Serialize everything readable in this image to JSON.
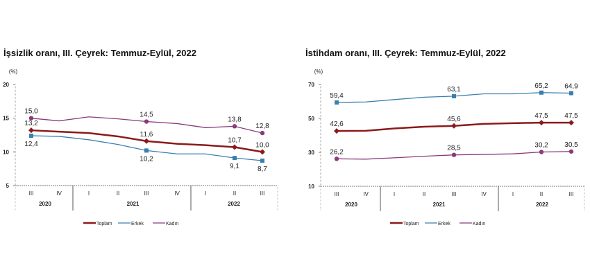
{
  "chart_data": [
    {
      "type": "line",
      "title": "İşsizlik oranı, III. Çeyrek: Temmuz-Eylül, 2022",
      "ylabel": "(%)",
      "ylim": [
        5,
        20
      ],
      "yticks": [
        5,
        10,
        15,
        20
      ],
      "grid": false,
      "legend": "bottom",
      "categories": [
        "III",
        "IV",
        "I",
        "II",
        "III",
        "IV",
        "I",
        "II",
        "III"
      ],
      "year_groups": [
        {
          "label": "2020",
          "span": 2
        },
        {
          "label": "2021",
          "span": 4
        },
        {
          "label": "2022",
          "span": 3
        }
      ],
      "series": [
        {
          "name": "Toplam",
          "color": "#8b1a1a",
          "marker": "diamond",
          "values": [
            13.2,
            13.0,
            12.8,
            12.3,
            11.6,
            11.2,
            11.0,
            10.7,
            10.0
          ],
          "labels": [
            "13,2",
            null,
            null,
            null,
            "11,6",
            null,
            null,
            "10,7",
            "10,0"
          ],
          "label_pos": "above"
        },
        {
          "name": "Erkek",
          "color": "#3a7fb0",
          "marker": "square",
          "values": [
            12.4,
            12.3,
            11.8,
            11.1,
            10.2,
            9.7,
            9.7,
            9.1,
            8.7
          ],
          "labels": [
            "12,4",
            null,
            null,
            null,
            "10,2",
            null,
            null,
            "9,1",
            "8,7"
          ],
          "label_pos": "below"
        },
        {
          "name": "Kadın",
          "color": "#8b3a7a",
          "marker": "circle",
          "values": [
            15.0,
            14.6,
            15.2,
            14.9,
            14.5,
            14.2,
            13.6,
            13.8,
            12.8
          ],
          "labels": [
            "15,0",
            null,
            null,
            null,
            "14,5",
            null,
            null,
            "13,8",
            "12,8"
          ],
          "label_pos": "above"
        }
      ]
    },
    {
      "type": "line",
      "title": "İstihdam oranı, III. Çeyrek: Temmuz-Eylül, 2022",
      "ylabel": "(%)",
      "ylim": [
        10,
        70
      ],
      "yticks": [
        10,
        30,
        50,
        70
      ],
      "grid": false,
      "legend": "bottom",
      "categories": [
        "III",
        "IV",
        "I",
        "II",
        "III",
        "IV",
        "I",
        "II",
        "III"
      ],
      "year_groups": [
        {
          "label": "2020",
          "span": 2
        },
        {
          "label": "2021",
          "span": 4
        },
        {
          "label": "2022",
          "span": 3
        }
      ],
      "series": [
        {
          "name": "Toplam",
          "color": "#8b1a1a",
          "marker": "diamond",
          "values": [
            42.6,
            42.7,
            44.1,
            45.1,
            45.6,
            46.8,
            47.2,
            47.5,
            47.5
          ],
          "labels": [
            "42,6",
            null,
            null,
            null,
            "45,6",
            null,
            null,
            "47,5",
            "47,5"
          ],
          "label_pos": "above"
        },
        {
          "name": "Erkek",
          "color": "#3a7fb0",
          "marker": "square",
          "values": [
            59.4,
            59.7,
            61.1,
            62.5,
            63.1,
            64.5,
            64.5,
            65.2,
            64.9
          ],
          "labels": [
            "59,4",
            null,
            null,
            null,
            "63,1",
            null,
            null,
            "65,2",
            "64,9"
          ],
          "label_pos": "above"
        },
        {
          "name": "Kadın",
          "color": "#8b3a7a",
          "marker": "circle",
          "values": [
            26.2,
            26.0,
            26.8,
            27.7,
            28.5,
            28.8,
            29.1,
            30.2,
            30.5
          ],
          "labels": [
            "26,2",
            null,
            null,
            null,
            "28,5",
            null,
            null,
            "30,2",
            "30,5"
          ],
          "label_pos": "above"
        }
      ]
    }
  ]
}
